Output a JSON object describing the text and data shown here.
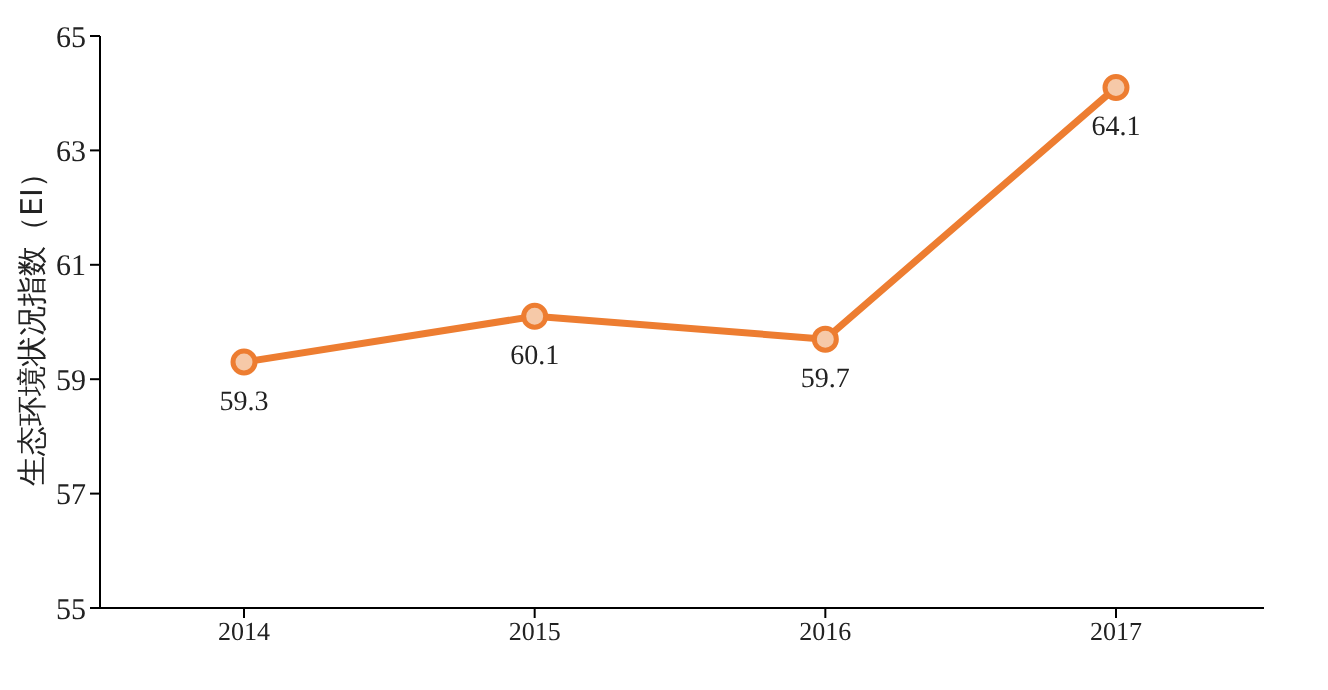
{
  "chart_data": {
    "type": "line",
    "ylabel": "生态环境状况指数（EI）",
    "categories": [
      "2014",
      "2015",
      "2016",
      "2017"
    ],
    "series": [
      {
        "color": "#ed7d31",
        "values": [
          59.3,
          60.1,
          59.7,
          64.1
        ]
      }
    ],
    "ylim": [
      55,
      65
    ],
    "yticks": [
      55,
      57,
      59,
      61,
      63,
      65
    ],
    "grid": false,
    "legend": false,
    "marker": "circle",
    "line_style": "solid",
    "data_labels": true
  }
}
